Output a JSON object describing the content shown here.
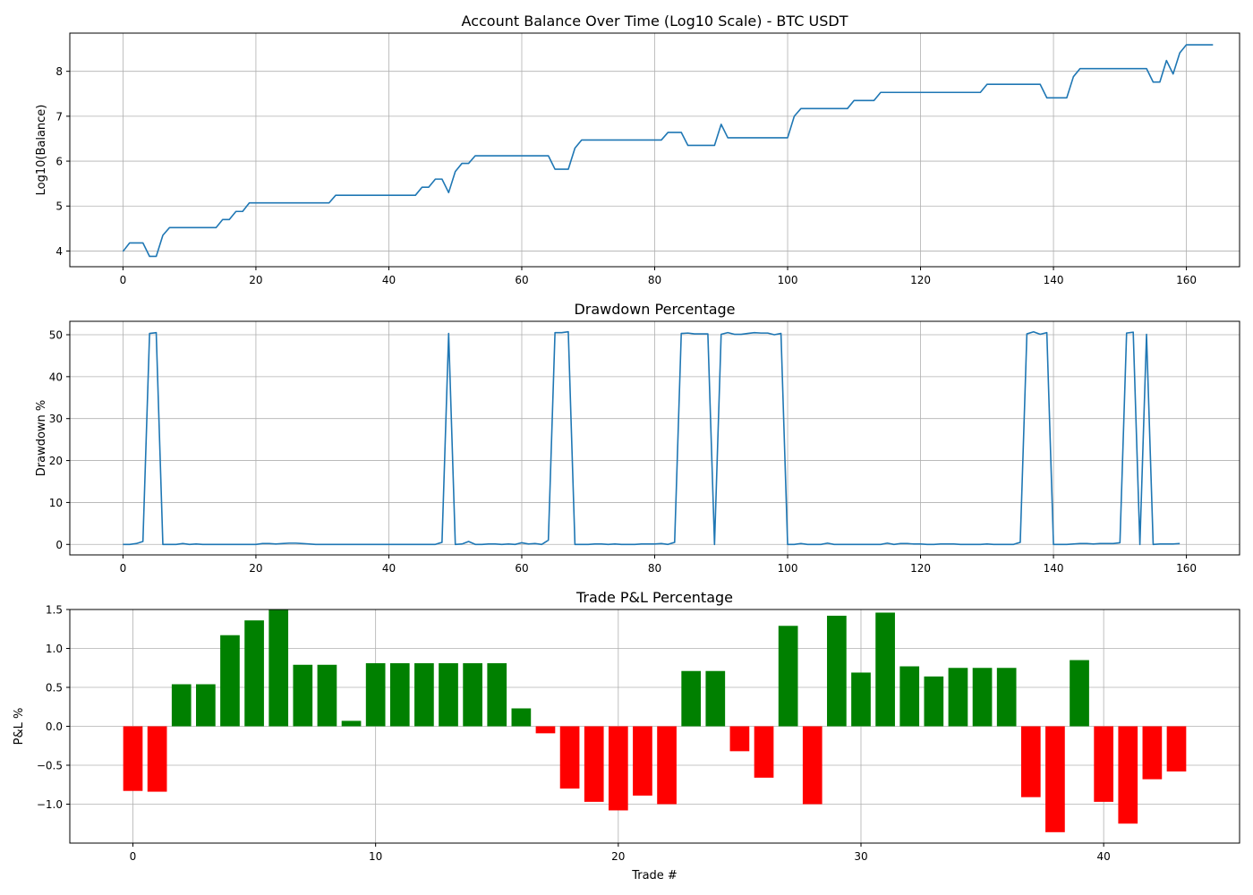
{
  "chart_data": [
    {
      "type": "line",
      "title": "Account Balance Over Time (Log10 Scale) - BTC USDT",
      "xlabel": "",
      "ylabel": "Log10(Balance)",
      "xlim": [
        -8,
        168
      ],
      "ylim": [
        3.65,
        8.85
      ],
      "xticks": [
        0,
        20,
        40,
        60,
        80,
        100,
        120,
        140,
        160
      ],
      "yticks": [
        4,
        5,
        6,
        7,
        8
      ],
      "grid": true,
      "color": "#1f77b4",
      "series": [
        {
          "values": [
            3.99,
            4.18,
            4.18,
            4.18,
            3.88,
            3.88,
            4.35,
            4.52,
            4.52,
            4.52,
            4.52,
            4.52,
            4.52,
            4.52,
            4.52,
            4.7,
            4.7,
            4.88,
            4.88,
            5.07,
            5.07,
            5.07,
            5.07,
            5.07,
            5.07,
            5.07,
            5.07,
            5.07,
            5.07,
            5.07,
            5.07,
            5.07,
            5.24,
            5.24,
            5.24,
            5.24,
            5.24,
            5.24,
            5.24,
            5.24,
            5.24,
            5.24,
            5.24,
            5.24,
            5.24,
            5.42,
            5.42,
            5.6,
            5.6,
            5.3,
            5.77,
            5.95,
            5.95,
            6.12,
            6.12,
            6.12,
            6.12,
            6.12,
            6.12,
            6.12,
            6.12,
            6.12,
            6.12,
            6.12,
            6.12,
            5.82,
            5.82,
            5.82,
            6.29,
            6.47,
            6.47,
            6.47,
            6.47,
            6.47,
            6.47,
            6.47,
            6.47,
            6.47,
            6.47,
            6.47,
            6.47,
            6.47,
            6.64,
            6.64,
            6.64,
            6.35,
            6.35,
            6.35,
            6.35,
            6.35,
            6.82,
            6.52,
            6.52,
            6.52,
            6.52,
            6.52,
            6.52,
            6.52,
            6.52,
            6.52,
            6.52,
            7.0,
            7.17,
            7.17,
            7.17,
            7.17,
            7.17,
            7.17,
            7.17,
            7.17,
            7.35,
            7.35,
            7.35,
            7.35,
            7.53,
            7.53,
            7.53,
            7.53,
            7.53,
            7.53,
            7.53,
            7.53,
            7.53,
            7.53,
            7.53,
            7.53,
            7.53,
            7.53,
            7.53,
            7.53,
            7.71,
            7.71,
            7.71,
            7.71,
            7.71,
            7.71,
            7.71,
            7.71,
            7.71,
            7.41,
            7.41,
            7.41,
            7.41,
            7.88,
            8.06,
            8.06,
            8.06,
            8.06,
            8.06,
            8.06,
            8.06,
            8.06,
            8.06,
            8.06,
            8.06,
            7.76,
            7.76,
            8.24,
            7.94,
            8.41,
            8.59,
            8.59,
            8.59,
            8.59,
            8.59
          ]
        }
      ]
    },
    {
      "type": "line",
      "title": "Drawdown Percentage",
      "xlabel": "",
      "ylabel": "Drawdown %",
      "xlim": [
        -8,
        168
      ],
      "ylim": [
        -2.5,
        53.2
      ],
      "xticks": [
        0,
        20,
        40,
        60,
        80,
        100,
        120,
        140,
        160
      ],
      "yticks": [
        0,
        10,
        20,
        30,
        40,
        50
      ],
      "grid": true,
      "color": "#1f77b4",
      "series": [
        {
          "values": [
            0,
            0,
            0.2,
            0.7,
            50.3,
            50.5,
            0,
            0,
            0,
            0.2,
            0,
            0.1,
            0,
            0,
            0,
            0,
            0,
            0,
            0,
            0,
            0,
            0.2,
            0.2,
            0.1,
            0.2,
            0.3,
            0.3,
            0.2,
            0.1,
            0,
            0,
            0,
            0,
            0,
            0,
            0,
            0,
            0,
            0,
            0,
            0,
            0,
            0,
            0,
            0,
            0,
            0,
            0,
            0.5,
            50.3,
            0,
            0.1,
            0.7,
            0,
            0,
            0.1,
            0.1,
            0,
            0.1,
            0,
            0.4,
            0.1,
            0.2,
            0,
            1.0,
            50.5,
            50.5,
            50.7,
            0,
            0,
            0,
            0.1,
            0.1,
            0,
            0.1,
            0,
            0,
            0,
            0.1,
            0.1,
            0.1,
            0.2,
            0,
            0.5,
            50.3,
            50.4,
            50.2,
            50.2,
            50.2,
            0,
            50.1,
            50.5,
            50.1,
            50.1,
            50.3,
            50.5,
            50.4,
            50.4,
            50.0,
            50.3,
            0,
            0,
            0.2,
            0,
            0,
            0,
            0.3,
            0,
            0,
            0,
            0,
            0,
            0,
            0,
            0,
            0.3,
            0,
            0.2,
            0.2,
            0.1,
            0.1,
            0,
            0,
            0.1,
            0.1,
            0.1,
            0,
            0,
            0,
            0,
            0.1,
            0,
            0,
            0,
            0,
            0.5,
            50.2,
            50.7,
            50.1,
            50.5,
            0,
            0,
            0,
            0.1,
            0.2,
            0.2,
            0.1,
            0.2,
            0.2,
            0.2,
            0.4,
            50.4,
            50.6,
            0,
            50.1,
            0,
            0.1,
            0.1,
            0.1,
            0.2
          ]
        }
      ]
    },
    {
      "type": "bar",
      "title": "Trade P&L Percentage",
      "xlabel": "Trade #",
      "ylabel": "P&L %",
      "xlim": [
        -2.6,
        45.6
      ],
      "ylim": [
        -1.5,
        1.5
      ],
      "xticks": [
        0,
        10,
        20,
        30,
        40
      ],
      "yticks": [
        -1.0,
        -0.5,
        0.0,
        0.5,
        1.0,
        1.5
      ],
      "ytick_labels": [
        "−1.0",
        "−0.5",
        "0.0",
        "0.5",
        "1.0",
        "1.5"
      ],
      "grid": true,
      "colors": {
        "positive": "#008000",
        "negative": "#ff0000"
      },
      "values": [
        -0.83,
        -0.84,
        0.54,
        0.54,
        1.17,
        1.36,
        1.5,
        0.79,
        0.79,
        0.07,
        0.81,
        0.81,
        0.81,
        0.81,
        0.81,
        0.81,
        0.23,
        -0.09,
        -0.8,
        -0.97,
        -1.08,
        -0.89,
        -1.0,
        0.71,
        0.71,
        -0.32,
        -0.66,
        1.29,
        -1.0,
        1.42,
        0.69,
        1.46,
        0.77,
        0.64,
        0.75,
        0.75,
        0.75,
        -0.91,
        -1.36,
        0.85,
        -0.97,
        -1.25,
        -0.68,
        -0.58
      ]
    }
  ]
}
